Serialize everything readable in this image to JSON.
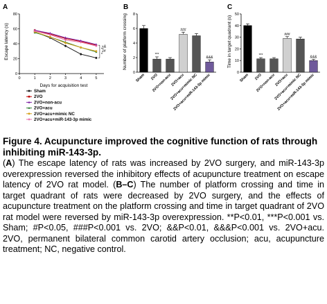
{
  "figure": {
    "panel_a": {
      "letter": "A",
      "ylabel": "Escape latency (s)",
      "xlabel": "Days for acquisition test",
      "legend": [
        "Sham",
        "2VO",
        "2VO+non-acu",
        "2VO+acu",
        "2VO+acu+mimic NC",
        "2VO+acu+miR-143-3p mimic"
      ],
      "sig_marks": [
        "*",
        "&",
        "#",
        "*"
      ]
    },
    "panel_b": {
      "letter": "B",
      "ylabel": "Number of platform crossing",
      "sig_labels": [
        "",
        "***",
        "",
        "###",
        "",
        "&&&"
      ]
    },
    "panel_c": {
      "letter": "C",
      "ylabel": "Time in target quadrant (s)",
      "sig_labels": [
        "",
        "***",
        "",
        "###",
        "",
        "&&&"
      ]
    },
    "group_labels": [
      "Sham",
      "2VO",
      "2VO+non-acu",
      "2VO+acu",
      "2VO+acu+mimic NC",
      "2VO+acu+miR-143-3p mimic"
    ],
    "colors": {
      "sham": "#1a1a1a",
      "vo": "#c00000",
      "non_acu": "#7b1fa2",
      "acu": "#2e7d32",
      "mimic_nc": "#d4a017",
      "mimic": "#e56aa5",
      "bar_dark": "#000000",
      "bar_gray": "#555555",
      "bar_light": "#d0d0d0",
      "bar_purple": "#6f5a9b"
    }
  },
  "chart_data": [
    {
      "type": "line",
      "xlabel": "Days for acquisition test",
      "ylabel": "Escape latency (s)",
      "x": [
        1,
        2,
        3,
        4,
        5
      ],
      "xlim": [
        0,
        5.5
      ],
      "ylim": [
        0,
        80
      ],
      "yticks": [
        0,
        20,
        40,
        60,
        80
      ],
      "legend_position": "bottom",
      "series": [
        {
          "name": "Sham",
          "values": [
            56,
            48,
            37,
            26,
            21
          ]
        },
        {
          "name": "2VO",
          "values": [
            58,
            53,
            47,
            43,
            38
          ]
        },
        {
          "name": "2VO+non-acu",
          "values": [
            58,
            54,
            48,
            44,
            39
          ]
        },
        {
          "name": "2VO+acu",
          "values": [
            55,
            49,
            42,
            35,
            29
          ]
        },
        {
          "name": "2VO+acu+mimic NC",
          "values": [
            56,
            49,
            41,
            35,
            30
          ]
        },
        {
          "name": "2VO+acu+miR-143-3p mimic",
          "values": [
            57,
            52,
            45,
            42,
            37
          ]
        }
      ]
    },
    {
      "type": "bar",
      "ylabel": "Number of platform crossing",
      "categories": [
        "Sham",
        "2VO",
        "2VO+non-acu",
        "2VO+acu",
        "2VO+acu+mimic NC",
        "2VO+acu+miR-143-3p mimic"
      ],
      "values": [
        6.0,
        1.8,
        1.8,
        5.2,
        5.0,
        1.4
      ],
      "errors": [
        0.4,
        0.3,
        0.2,
        0.3,
        0.3,
        0.3
      ],
      "ylim": [
        0,
        8
      ],
      "yticks": [
        0,
        2,
        4,
        6,
        8
      ]
    },
    {
      "type": "bar",
      "ylabel": "Time in target quadrant (s)",
      "categories": [
        "Sham",
        "2VO",
        "2VO+non-acu",
        "2VO+acu",
        "2VO+acu+mimic NC",
        "2VO+acu+miR-143-3p mimic"
      ],
      "values": [
        40,
        11.5,
        11.5,
        29,
        28.5,
        10
      ],
      "errors": [
        1.5,
        1.0,
        1.0,
        1.5,
        1.5,
        1.0
      ],
      "ylim": [
        0,
        50
      ],
      "yticks": [
        0,
        10,
        20,
        30,
        40,
        50
      ]
    }
  ],
  "caption": {
    "title": "Figure 4. Acupuncture improved the cognitive function of rats through inhibiting miR-143-3p.",
    "paragraph": [
      {
        "t": "(",
        "b": false
      },
      {
        "t": "A",
        "b": true
      },
      {
        "t": ") The escape latency of rats was increased by 2VO surgery, and miR-143-3p overexpression reversed the inhibitory effects of acupuncture treatment on escape latency of 2VO rat model. (",
        "b": false
      },
      {
        "t": "B–C",
        "b": true
      },
      {
        "t": ") The number of platform crossing and time in target quadrant of rats were decreased by 2VO surgery, and the effects of acupuncture treatment on the platform crossing and time in target quadrant of 2VO rat model were reversed by miR-143-3p overexpression. **P<0.01, ***P<0.001 vs. Sham; #P<0.05, ###P<0.001 vs. 2VO; &&P<0.01, &&&P<0.001 vs. 2VO+acu. 2VO, permanent bilateral common carotid artery occlusion; acu, acupuncture treatment; NC, negative control.",
        "b": false
      }
    ]
  }
}
